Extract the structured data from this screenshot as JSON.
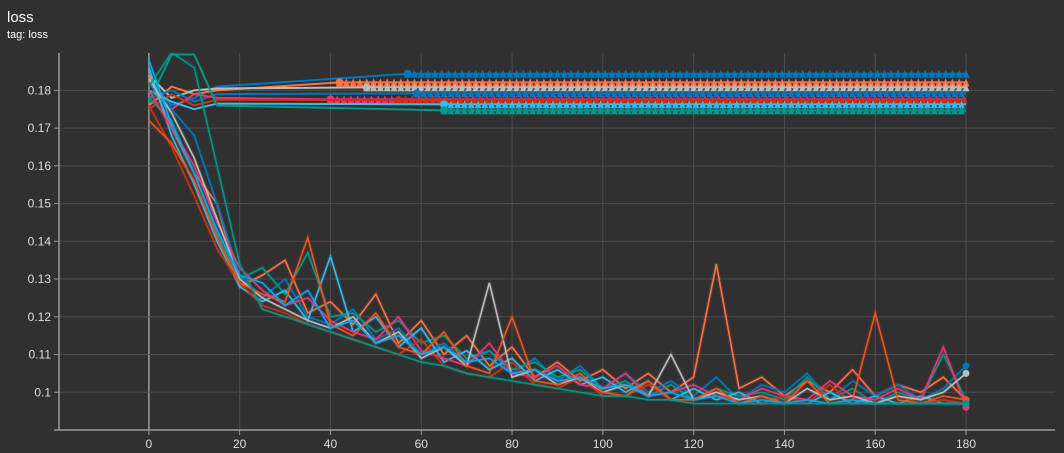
{
  "chart_data": {
    "type": "line",
    "title": "loss",
    "subtitle": "tag: loss",
    "xlabel": "",
    "ylabel": "",
    "xlim": [
      -19.8,
      199.6
    ],
    "ylim": [
      0.09,
      0.1899
    ],
    "xticks": [
      "0",
      "20",
      "40",
      "60",
      "80",
      "100",
      "120",
      "140",
      "160",
      "180"
    ],
    "yticks": [
      "0.1",
      "0.11",
      "0.12",
      "0.13",
      "0.14",
      "0.15",
      "0.16",
      "0.17",
      "0.18"
    ],
    "grid": true,
    "legend": "none",
    "x": [
      0,
      5,
      10,
      15,
      20,
      25,
      30,
      35,
      40,
      45,
      50,
      55,
      60,
      65,
      70,
      75,
      80,
      85,
      90,
      95,
      100,
      105,
      110,
      115,
      120,
      125,
      130,
      135,
      140,
      145,
      150,
      155,
      160,
      165,
      170,
      175,
      180
    ],
    "series": [
      {
        "color": "#ff7043",
        "values": [
          0.184,
          0.17,
          0.158,
          0.15,
          0.128,
          0.131,
          0.135,
          0.121,
          0.124,
          0.118,
          0.126,
          0.113,
          0.119,
          0.11,
          0.115,
          0.107,
          0.112,
          0.104,
          0.108,
          0.103,
          0.106,
          0.101,
          0.105,
          0.1,
          0.104,
          0.134,
          0.101,
          0.104,
          0.099,
          0.103,
          0.1,
          0.106,
          0.099,
          0.102,
          0.1,
          0.104,
          0.098
        ]
      },
      {
        "color": "#0077bb",
        "values": [
          0.182,
          0.175,
          0.168,
          0.15,
          0.131,
          0.125,
          0.13,
          0.12,
          0.118,
          0.122,
          0.114,
          0.117,
          0.11,
          0.113,
          0.108,
          0.111,
          0.105,
          0.109,
          0.103,
          0.107,
          0.101,
          0.105,
          0.1,
          0.103,
          0.099,
          0.104,
          0.098,
          0.102,
          0.1,
          0.105,
          0.098,
          0.103,
          0.099,
          0.102,
          0.098,
          0.101,
          0.107
        ]
      },
      {
        "color": "#009988",
        "values": [
          0.178,
          0.172,
          0.158,
          0.142,
          0.13,
          0.133,
          0.126,
          0.137,
          0.12,
          0.121,
          0.116,
          0.119,
          0.113,
          0.115,
          0.109,
          0.111,
          0.106,
          0.108,
          0.104,
          0.106,
          0.101,
          0.103,
          0.099,
          0.102,
          0.098,
          0.101,
          0.099,
          0.1,
          0.098,
          0.104,
          0.098,
          0.101,
          0.097,
          0.1,
          0.098,
          0.11,
          0.098
        ]
      },
      {
        "color": "#33bbee",
        "values": [
          0.186,
          0.168,
          0.155,
          0.14,
          0.128,
          0.124,
          0.127,
          0.119,
          0.136,
          0.116,
          0.12,
          0.112,
          0.117,
          0.108,
          0.111,
          0.106,
          0.109,
          0.103,
          0.106,
          0.102,
          0.104,
          0.1,
          0.103,
          0.098,
          0.101,
          0.098,
          0.1,
          0.097,
          0.099,
          0.097,
          0.1,
          0.097,
          0.099,
          0.097,
          0.099,
          0.097,
          0.097
        ]
      },
      {
        "color": "#ee3377",
        "values": [
          0.18,
          0.17,
          0.16,
          0.145,
          0.133,
          0.127,
          0.123,
          0.125,
          0.119,
          0.116,
          0.114,
          0.12,
          0.111,
          0.109,
          0.107,
          0.113,
          0.105,
          0.104,
          0.107,
          0.102,
          0.101,
          0.105,
          0.099,
          0.1,
          0.102,
          0.099,
          0.098,
          0.101,
          0.099,
          0.098,
          0.103,
          0.099,
          0.098,
          0.101,
          0.098,
          0.112,
          0.096
        ]
      },
      {
        "color": "#cc3311",
        "values": [
          0.176,
          0.165,
          0.152,
          0.138,
          0.129,
          0.123,
          0.121,
          0.118,
          0.116,
          0.114,
          0.112,
          0.11,
          0.114,
          0.107,
          0.105,
          0.104,
          0.108,
          0.102,
          0.101,
          0.104,
          0.099,
          0.099,
          0.102,
          0.098,
          0.098,
          0.1,
          0.097,
          0.097,
          0.099,
          0.097,
          0.102,
          0.097,
          0.097,
          0.099,
          0.097,
          0.098,
          0.097
        ]
      },
      {
        "color": "#bbbbbb",
        "values": [
          0.183,
          0.174,
          0.162,
          0.146,
          0.13,
          0.125,
          0.122,
          0.119,
          0.117,
          0.12,
          0.113,
          0.116,
          0.109,
          0.112,
          0.107,
          0.129,
          0.104,
          0.106,
          0.102,
          0.104,
          0.1,
          0.102,
          0.099,
          0.11,
          0.098,
          0.1,
          0.098,
          0.099,
          0.097,
          0.101,
          0.098,
          0.099,
          0.097,
          0.099,
          0.098,
          0.1,
          0.105
        ]
      },
      {
        "color": "#f4511e",
        "values": [
          0.172,
          0.166,
          0.156,
          0.141,
          0.129,
          0.126,
          0.124,
          0.141,
          0.118,
          0.115,
          0.121,
          0.112,
          0.11,
          0.116,
          0.107,
          0.105,
          0.12,
          0.103,
          0.102,
          0.105,
          0.1,
          0.099,
          0.103,
          0.098,
          0.098,
          0.101,
          0.097,
          0.099,
          0.097,
          0.103,
          0.097,
          0.098,
          0.121,
          0.098,
          0.097,
          0.099,
          0.098
        ]
      },
      {
        "color": "#03a9f4",
        "values": [
          0.188,
          0.171,
          0.158,
          0.143,
          0.131,
          0.129,
          0.123,
          0.127,
          0.117,
          0.119,
          0.113,
          0.115,
          0.11,
          0.112,
          0.108,
          0.109,
          0.105,
          0.106,
          0.103,
          0.104,
          0.101,
          0.102,
          0.099,
          0.1,
          0.098,
          0.099,
          0.097,
          0.098,
          0.097,
          0.098,
          0.097,
          0.098,
          0.097,
          0.097,
          0.097,
          0.097,
          0.097
        ]
      },
      {
        "color": "#009688",
        "values": [
          0.181,
          0.19,
          0.186,
          0.16,
          0.134,
          0.122,
          0.12,
          0.118,
          0.116,
          0.114,
          0.112,
          0.11,
          0.108,
          0.107,
          0.105,
          0.104,
          0.103,
          0.102,
          0.101,
          0.1,
          0.099,
          0.099,
          0.098,
          0.098,
          0.097,
          0.097,
          0.097,
          0.097,
          0.097,
          0.097,
          0.097,
          0.097,
          0.097,
          0.097,
          0.097,
          0.097,
          0.097
        ]
      }
    ],
    "flat_series": [
      {
        "color": "#0077bb",
        "value": 0.1844,
        "from": 57,
        "start": [
          [
            0,
            0.183
          ],
          [
            5,
            0.176
          ],
          [
            10,
            0.178
          ],
          [
            15,
            0.181
          ]
        ]
      },
      {
        "color": "#ff7043",
        "value": 0.1821,
        "from": 42,
        "start": [
          [
            0,
            0.176
          ],
          [
            5,
            0.181
          ],
          [
            10,
            0.179
          ],
          [
            15,
            0.18
          ]
        ]
      },
      {
        "color": "#bbbbbb",
        "value": 0.1808,
        "from": 48,
        "start": [
          [
            0,
            0.184
          ],
          [
            5,
            0.178
          ],
          [
            10,
            0.18
          ],
          [
            15,
            0.1805
          ]
        ]
      },
      {
        "color": "#0077bb",
        "value": 0.1792,
        "from": 59,
        "start": [
          [
            0,
            0.178
          ],
          [
            5,
            0.18
          ],
          [
            10,
            0.177
          ],
          [
            15,
            0.179
          ]
        ]
      },
      {
        "color": "#ee3377",
        "value": 0.1776,
        "from": 40,
        "start": [
          [
            0,
            0.182
          ],
          [
            5,
            0.175
          ],
          [
            10,
            0.179
          ],
          [
            15,
            0.178
          ]
        ]
      },
      {
        "color": "#cc3311",
        "value": 0.1774,
        "from": 55,
        "start": [
          [
            0,
            0.175
          ],
          [
            5,
            0.179
          ],
          [
            10,
            0.176
          ],
          [
            15,
            0.1775
          ]
        ]
      },
      {
        "color": "#33bbee",
        "value": 0.1763,
        "from": 65,
        "start": [
          [
            0,
            0.18
          ],
          [
            5,
            0.177
          ],
          [
            10,
            0.175
          ],
          [
            15,
            0.1765
          ]
        ]
      },
      {
        "color": "#009988",
        "value": 0.1747,
        "from": 65,
        "start": [
          [
            0,
            0.177
          ],
          [
            5,
            0.1895
          ],
          [
            10,
            0.1895
          ],
          [
            15,
            0.176
          ]
        ]
      }
    ]
  }
}
